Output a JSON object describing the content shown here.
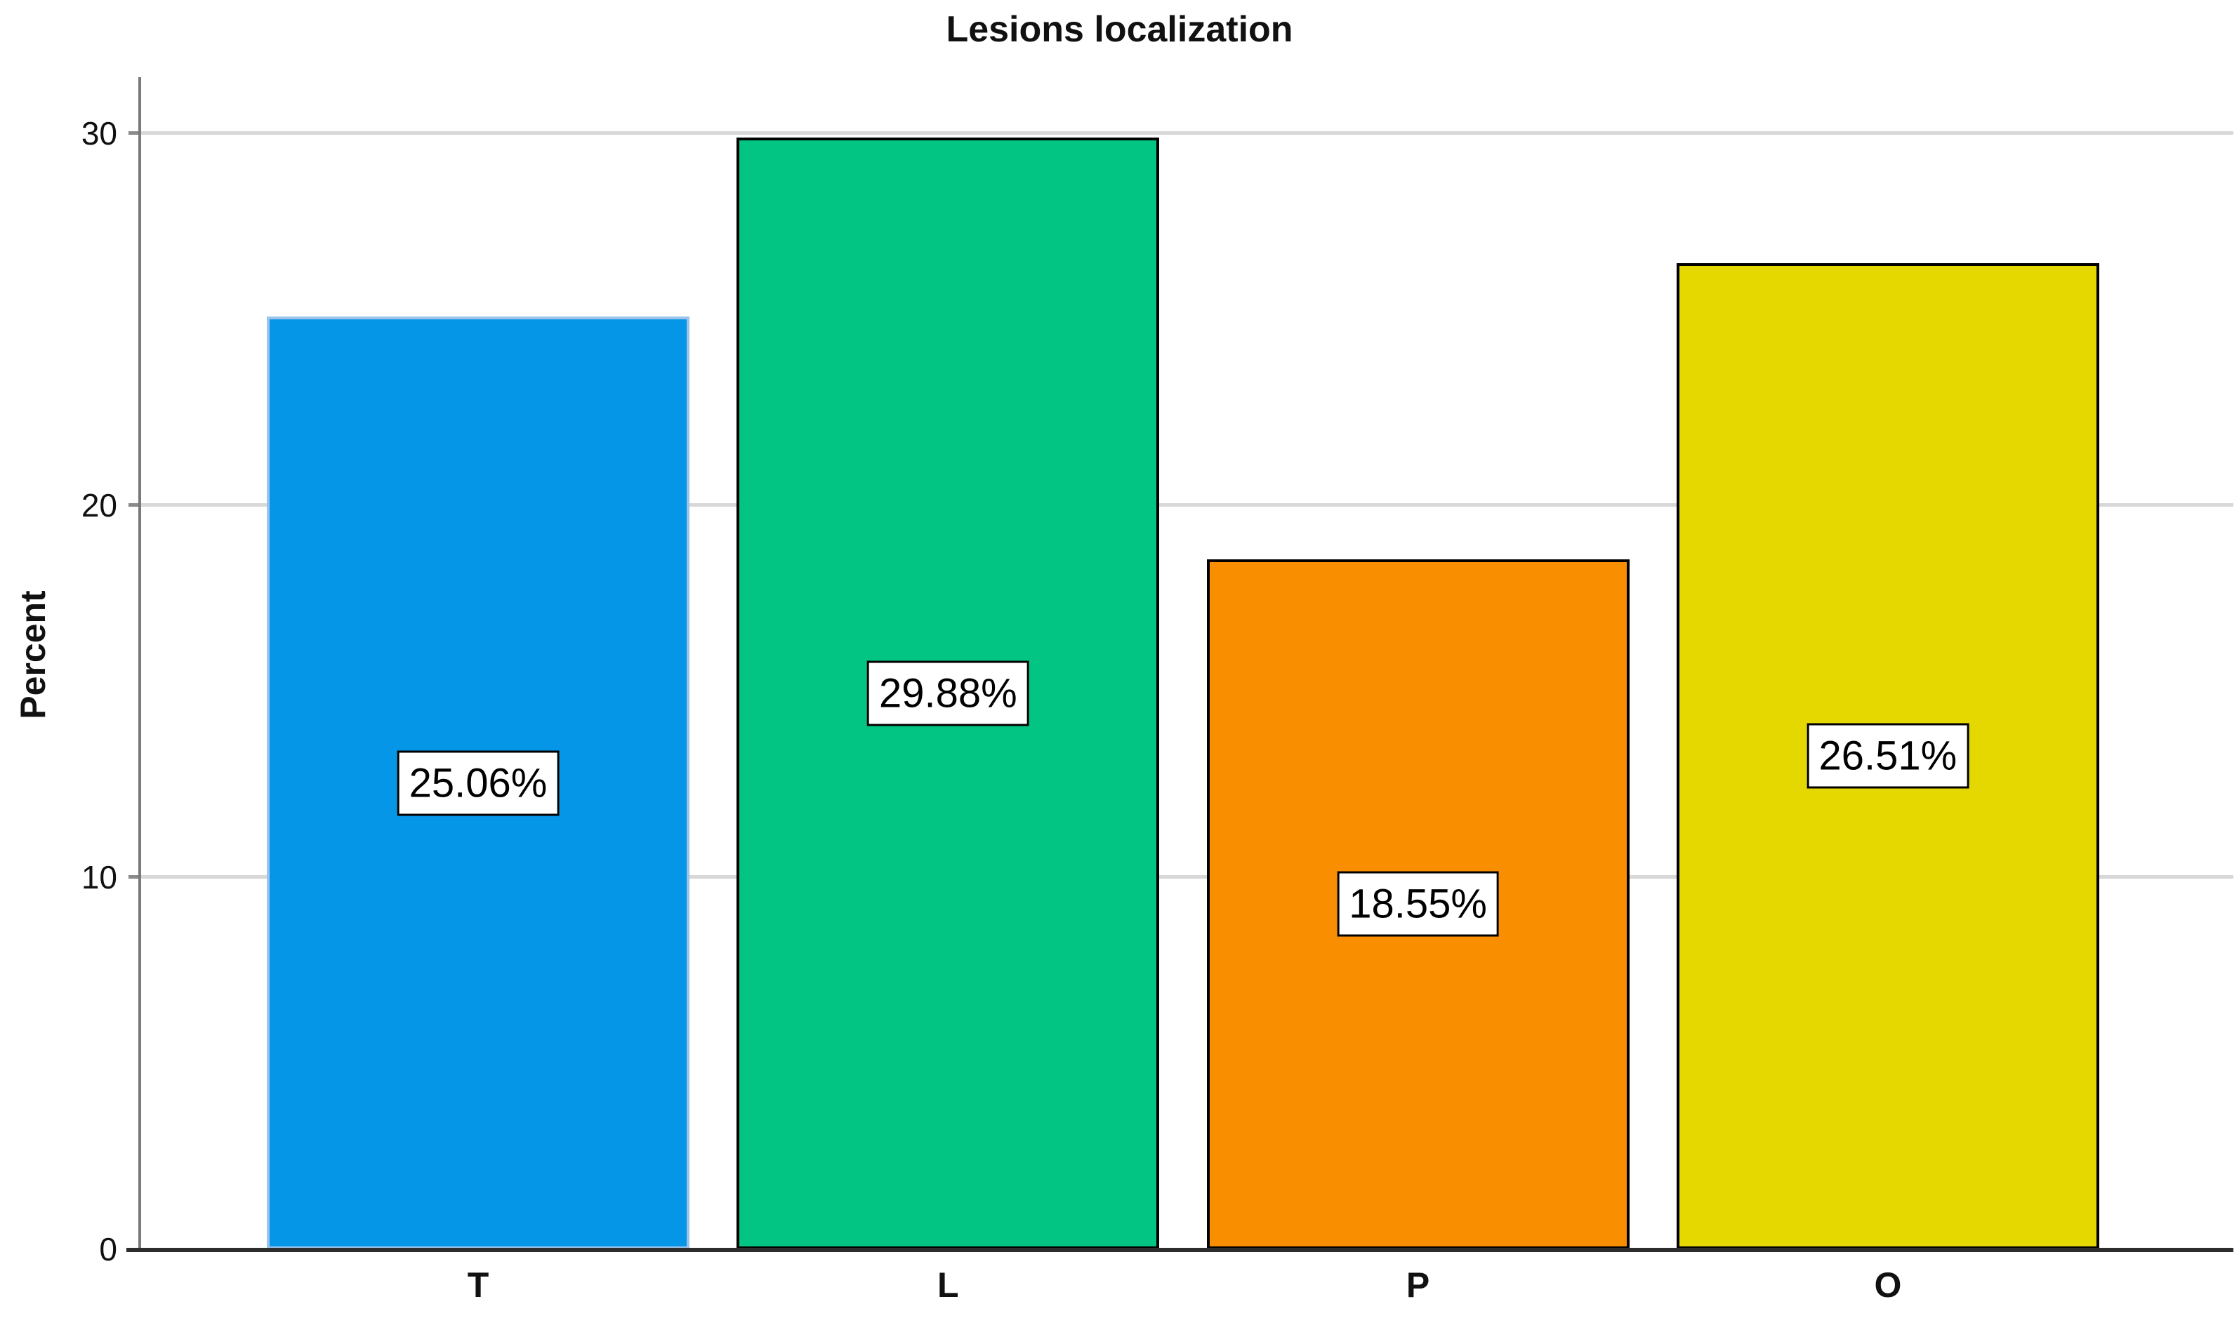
{
  "chart_data": {
    "type": "bar",
    "title": "Lesions localization",
    "xlabel": "",
    "ylabel": "Percent",
    "categories": [
      "T",
      "L",
      "P",
      "O"
    ],
    "values": [
      25.06,
      29.88,
      18.55,
      26.51
    ],
    "value_labels": [
      "25.06%",
      "29.88%",
      "18.55%",
      "26.51%"
    ],
    "bar_fill_colors": [
      "#0596e8",
      "#02c583",
      "#f98e00",
      "#e5d800"
    ],
    "bar_border_colors": [
      "#9cc3ea",
      "#000000",
      "#000000",
      "#000000"
    ],
    "yticks": [
      0,
      10,
      20,
      30
    ],
    "ylim": [
      0,
      31.5
    ],
    "grid": "horizontal-behind-bars",
    "gridline_color": "#d8d8d8",
    "legend": "none",
    "background_color": "#ffffff",
    "axis_colors": {
      "y_axis": "#7a7a7a",
      "x_axis": "#2d2d2d"
    }
  }
}
